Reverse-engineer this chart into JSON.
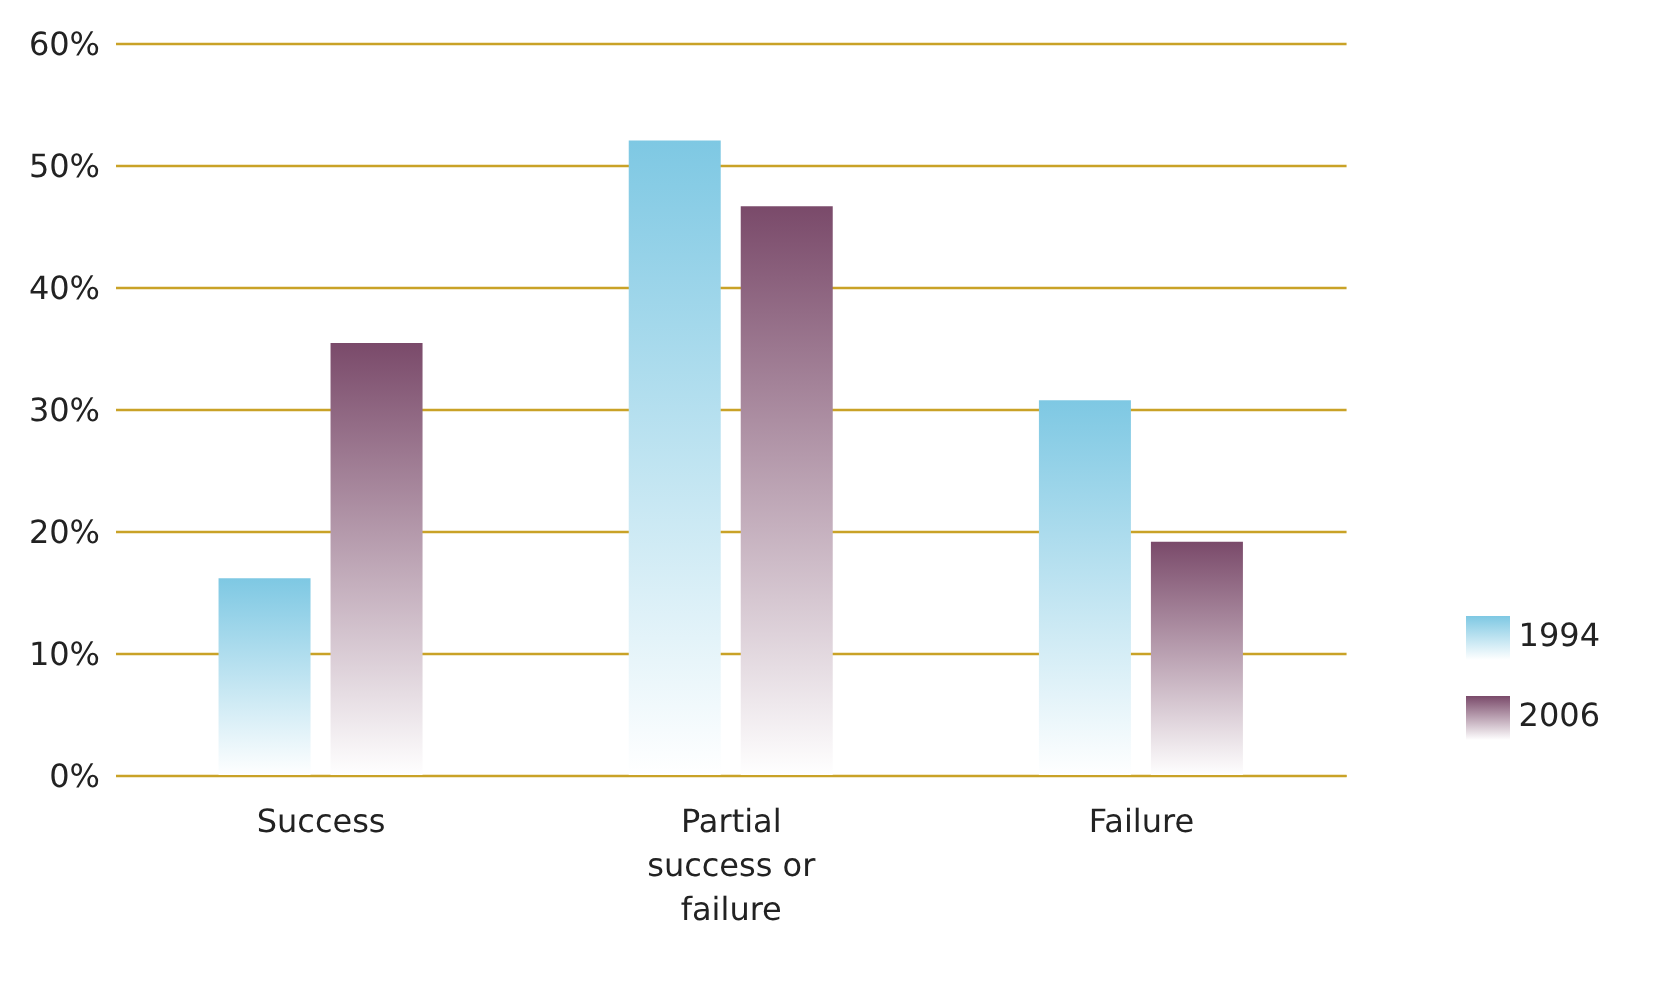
{
  "chart_data": {
    "type": "bar",
    "categories": [
      "Success",
      "Partial success or failure",
      "Failure"
    ],
    "series": [
      {
        "name": "1994",
        "color": "#7ec8e3",
        "values": [
          16.2,
          52.1,
          30.8
        ]
      },
      {
        "name": "2006",
        "color": "#7a4a6a",
        "values": [
          35.5,
          46.7,
          19.2
        ]
      }
    ],
    "ylim": [
      0,
      60
    ],
    "yticks": [
      {
        "value": 0,
        "label": "0%"
      },
      {
        "value": 10,
        "label": "10%"
      },
      {
        "value": 20,
        "label": "20%"
      },
      {
        "value": 30,
        "label": "30%"
      },
      {
        "value": 40,
        "label": "40%"
      },
      {
        "value": 50,
        "label": "50%"
      },
      {
        "value": 60,
        "label": "60%"
      }
    ],
    "grid": "y",
    "legend": "right"
  }
}
